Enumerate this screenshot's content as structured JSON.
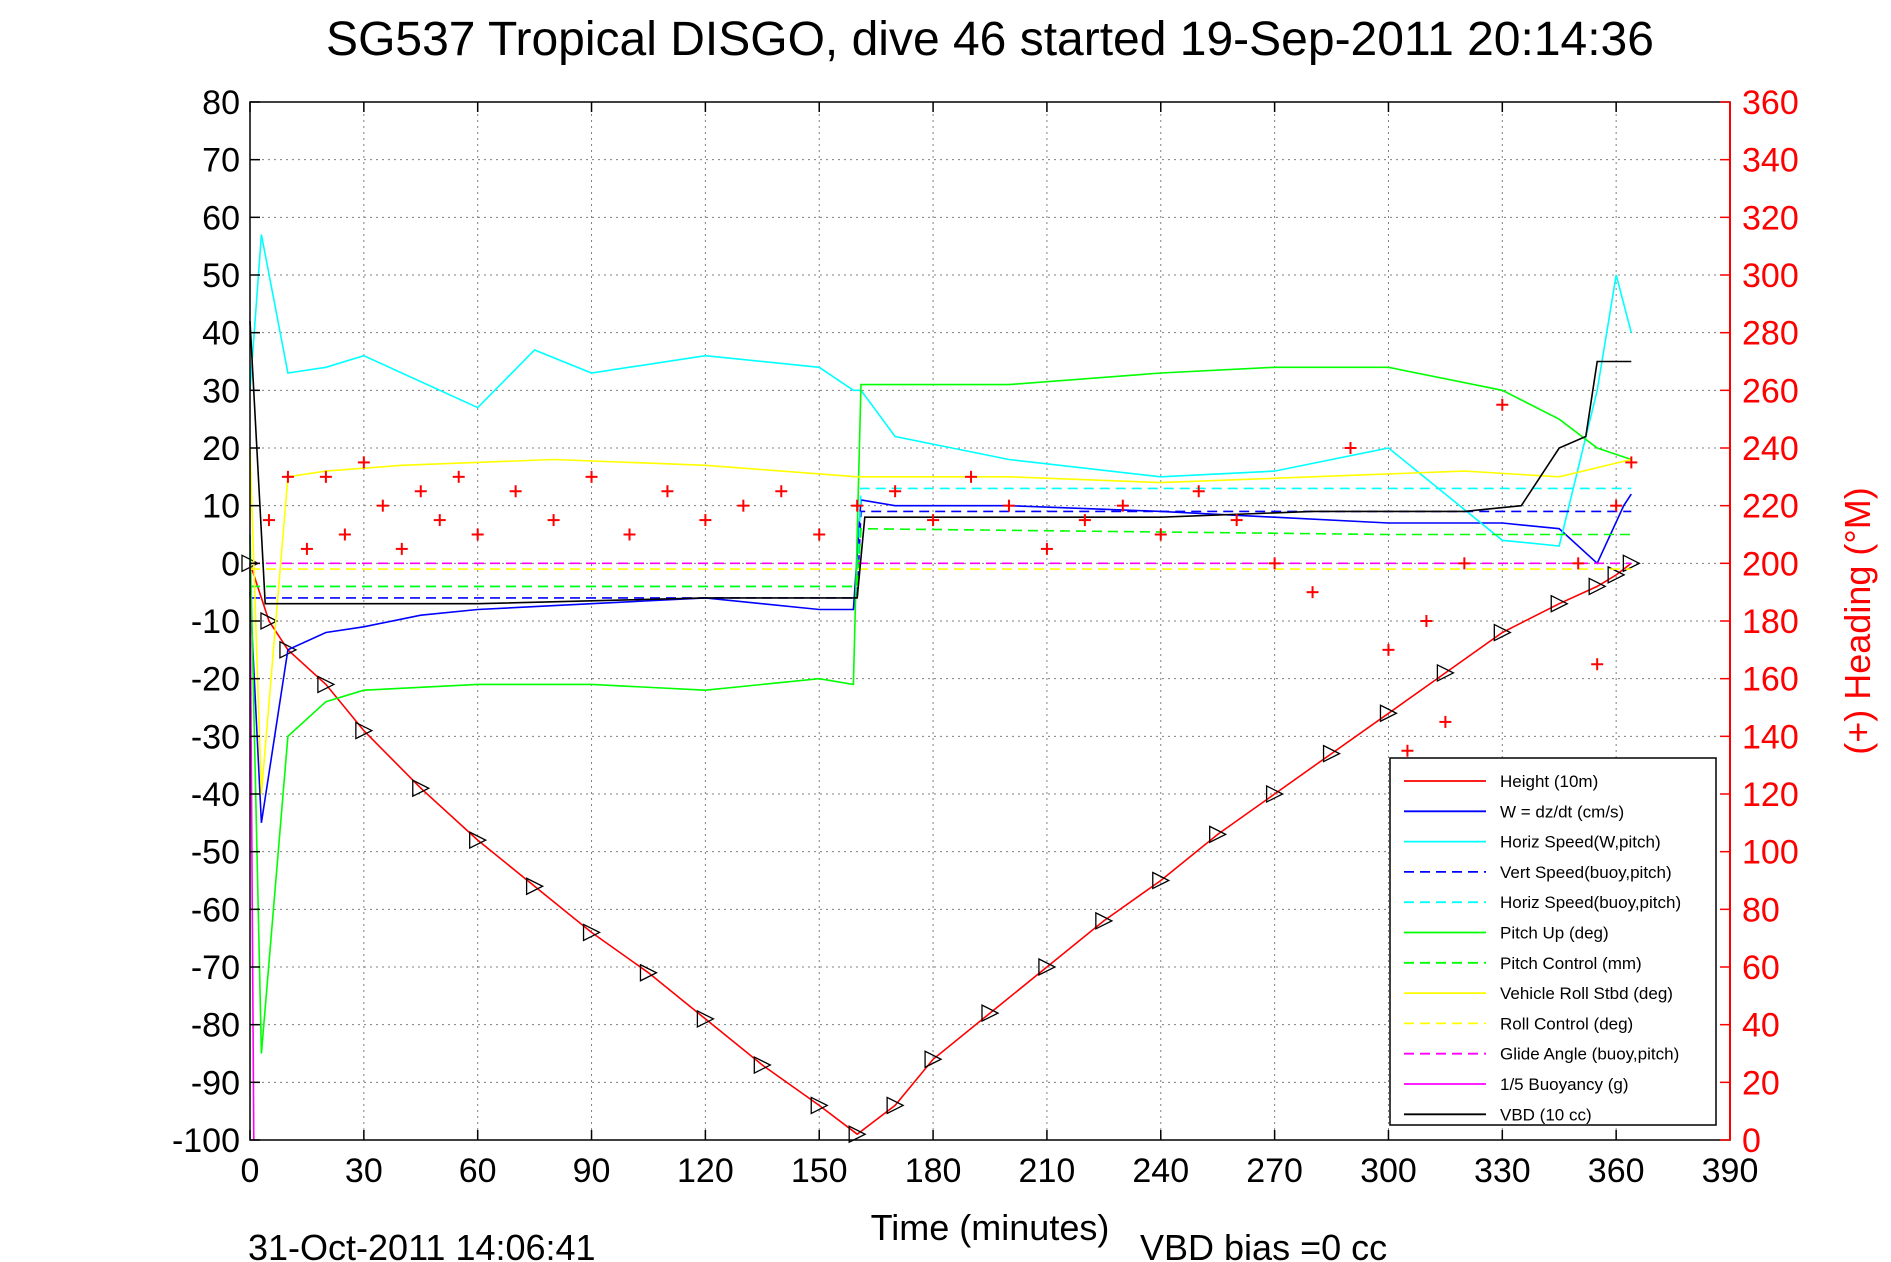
{
  "title": "SG537 Tropical DISGO, dive 46 started 19-Sep-2011 20:14:36",
  "footer": {
    "timestamp": "31-Oct-2011 14:06:41",
    "vbd_bias": "VBD bias =0 cc"
  },
  "colors": {
    "height": "#ff0000",
    "w": "#0000ff",
    "horiz_speed": "#00ffff",
    "pitch": "#00ff00",
    "roll": "#ffff00",
    "glide": "#ff00ff",
    "vbd": "#000000",
    "heading": "#ff0000"
  },
  "chart_data": {
    "type": "line",
    "title": "SG537 Tropical DISGO, dive 46 started 19-Sep-2011 20:14:36",
    "xlabel": "Time (minutes)",
    "ylabel": "",
    "y2label": "(+) Heading (°M)",
    "xlim": [
      0,
      390
    ],
    "ylim": [
      -100,
      80
    ],
    "y2lim": [
      0,
      360
    ],
    "xticks": [
      0,
      30,
      60,
      90,
      120,
      150,
      180,
      210,
      240,
      270,
      300,
      330,
      360,
      390
    ],
    "yticks": [
      80,
      70,
      60,
      50,
      40,
      30,
      20,
      10,
      0,
      -10,
      -20,
      -30,
      -40,
      -50,
      -60,
      -70,
      -80,
      -90,
      -100
    ],
    "y2ticks": [
      360,
      340,
      320,
      300,
      280,
      260,
      240,
      220,
      200,
      180,
      160,
      140,
      120,
      100,
      80,
      60,
      40,
      20,
      0
    ],
    "grid": true,
    "legend_position": "bottom-right",
    "series": [
      {
        "name": "Height (10m)",
        "style": "solid",
        "color": "#ff0000",
        "marker": "triangle",
        "x": [
          0,
          5,
          10,
          20,
          30,
          45,
          60,
          75,
          90,
          105,
          120,
          135,
          150,
          160,
          170,
          180,
          195,
          210,
          225,
          240,
          255,
          270,
          285,
          300,
          315,
          330,
          345,
          355,
          360,
          364
        ],
        "y": [
          0,
          -10,
          -15,
          -21,
          -29,
          -39,
          -48,
          -56,
          -64,
          -71,
          -79,
          -87,
          -94,
          -99,
          -94,
          -86,
          -78,
          -70,
          -62,
          -55,
          -47,
          -40,
          -33,
          -26,
          -19,
          -12,
          -7,
          -4,
          -2,
          0
        ]
      },
      {
        "name": "W = dz/dt (cm/s)",
        "style": "solid",
        "color": "#0000ff",
        "x": [
          0,
          3,
          10,
          20,
          30,
          45,
          60,
          90,
          120,
          150,
          159,
          161,
          170,
          200,
          240,
          270,
          300,
          330,
          345,
          355,
          362,
          364
        ],
        "y": [
          -5,
          -45,
          -15,
          -12,
          -11,
          -9,
          -8,
          -7,
          -6,
          -8,
          -8,
          11,
          10,
          10,
          9,
          8,
          7,
          7,
          6,
          0,
          10,
          12
        ]
      },
      {
        "name": "Horiz Speed(W,pitch)",
        "style": "solid",
        "color": "#00ffff",
        "x": [
          0,
          3,
          10,
          20,
          30,
          60,
          75,
          90,
          120,
          150,
          159,
          161,
          170,
          200,
          240,
          270,
          300,
          330,
          345,
          355,
          360,
          364
        ],
        "y": [
          30,
          57,
          33,
          34,
          36,
          27,
          37,
          33,
          36,
          34,
          30,
          30,
          22,
          18,
          15,
          16,
          20,
          4,
          3,
          30,
          50,
          40
        ]
      },
      {
        "name": "Vert Speed(buoy,pitch)",
        "style": "dashed",
        "color": "#0000ff",
        "x": [
          0,
          160,
          161,
          364
        ],
        "y": [
          -6,
          -6,
          9,
          9
        ]
      },
      {
        "name": "Horiz Speed(buoy,pitch)",
        "style": "dashed",
        "color": "#00ffff",
        "x": [
          0,
          160,
          161,
          364
        ],
        "y": [
          -4,
          -4,
          13,
          13
        ]
      },
      {
        "name": "Pitch Up (deg)",
        "style": "solid",
        "color": "#00ff00",
        "x": [
          0,
          3,
          10,
          20,
          30,
          60,
          90,
          120,
          150,
          159,
          161,
          200,
          240,
          270,
          300,
          330,
          345,
          355,
          364
        ],
        "y": [
          5,
          -85,
          -30,
          -24,
          -22,
          -21,
          -21,
          -22,
          -20,
          -21,
          31,
          31,
          33,
          34,
          34,
          30,
          25,
          20,
          18
        ]
      },
      {
        "name": "Pitch Control (mm)",
        "style": "dashed",
        "color": "#00ff00",
        "x": [
          0,
          160,
          161,
          300,
          364
        ],
        "y": [
          -4,
          -4,
          6,
          5,
          5
        ]
      },
      {
        "name": "Vehicle Roll Stbd (deg)",
        "style": "solid",
        "color": "#ffff00",
        "x": [
          0,
          3,
          10,
          20,
          40,
          80,
          120,
          160,
          200,
          240,
          280,
          320,
          345,
          364
        ],
        "y": [
          20,
          -40,
          15,
          16,
          17,
          18,
          17,
          15,
          15,
          14,
          15,
          16,
          15,
          18
        ]
      },
      {
        "name": "Roll Control (deg)",
        "style": "dashed",
        "color": "#ffff00",
        "x": [
          0,
          364
        ],
        "y": [
          -1,
          -1
        ]
      },
      {
        "name": "Glide Angle (buoy,pitch)",
        "style": "dashed",
        "color": "#ff00ff",
        "x": [
          0,
          364
        ],
        "y": [
          0,
          0
        ]
      },
      {
        "name": "1/5 Buoyancy (g)",
        "style": "solid",
        "color": "#ff00ff",
        "x": [
          0,
          1
        ],
        "y": [
          0,
          -100
        ]
      },
      {
        "name": "VBD (10 cc)",
        "style": "solid",
        "color": "#000000",
        "x": [
          0,
          4,
          60,
          120,
          158,
          160,
          162,
          200,
          240,
          280,
          300,
          320,
          335,
          345,
          352,
          355,
          364
        ],
        "y": [
          42,
          -7,
          -7,
          -6,
          -6,
          -6,
          8,
          8,
          8,
          9,
          9,
          9,
          10,
          20,
          22,
          35,
          35
        ]
      },
      {
        "name": "Heading",
        "axis": "right",
        "style": "markers",
        "color": "#ff0000",
        "marker": "plus",
        "x": [
          5,
          10,
          15,
          20,
          25,
          30,
          35,
          40,
          45,
          50,
          55,
          60,
          70,
          80,
          90,
          100,
          110,
          120,
          130,
          140,
          150,
          160,
          170,
          180,
          190,
          200,
          210,
          220,
          230,
          240,
          250,
          260,
          270,
          280,
          290,
          300,
          305,
          310,
          315,
          320,
          330,
          340,
          350,
          355,
          360,
          364
        ],
        "y": [
          215,
          230,
          205,
          230,
          210,
          235,
          220,
          205,
          225,
          215,
          230,
          210,
          225,
          215,
          230,
          210,
          225,
          215,
          220,
          225,
          210,
          220,
          225,
          215,
          230,
          220,
          205,
          215,
          220,
          210,
          225,
          215,
          200,
          190,
          240,
          170,
          135,
          180,
          145,
          200,
          255,
          130,
          200,
          165,
          220,
          235
        ]
      }
    ]
  }
}
